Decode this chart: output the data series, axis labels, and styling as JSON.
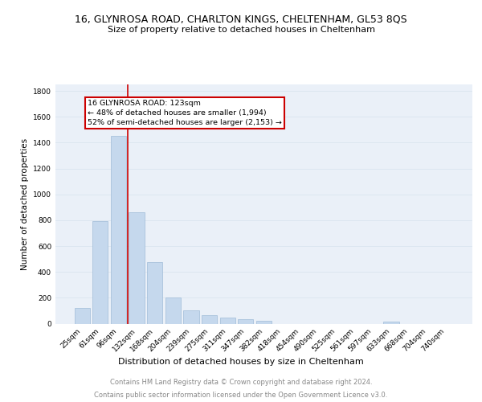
{
  "title": "16, GLYNROSA ROAD, CHARLTON KINGS, CHELTENHAM, GL53 8QS",
  "subtitle": "Size of property relative to detached houses in Cheltenham",
  "xlabel": "Distribution of detached houses by size in Cheltenham",
  "ylabel": "Number of detached properties",
  "footer_line1": "Contains HM Land Registry data © Crown copyright and database right 2024.",
  "footer_line2": "Contains public sector information licensed under the Open Government Licence v3.0.",
  "categories": [
    "25sqm",
    "61sqm",
    "96sqm",
    "132sqm",
    "168sqm",
    "204sqm",
    "239sqm",
    "275sqm",
    "311sqm",
    "347sqm",
    "382sqm",
    "418sqm",
    "454sqm",
    "490sqm",
    "525sqm",
    "561sqm",
    "597sqm",
    "633sqm",
    "668sqm",
    "704sqm",
    "740sqm"
  ],
  "values": [
    120,
    790,
    1455,
    860,
    475,
    200,
    100,
    68,
    48,
    32,
    22,
    0,
    0,
    0,
    0,
    0,
    0,
    17,
    0,
    0,
    0
  ],
  "bar_color": "#c5d8ed",
  "bar_edge_color": "#a0bcd8",
  "annotation_line1": "16 GLYNROSA ROAD: 123sqm",
  "annotation_line2": "← 48% of detached houses are smaller (1,994)",
  "annotation_line3": "52% of semi-detached houses are larger (2,153) →",
  "annotation_box_color": "#ffffff",
  "annotation_border_color": "#cc0000",
  "ylim": [
    0,
    1850
  ],
  "yticks": [
    0,
    200,
    400,
    600,
    800,
    1000,
    1200,
    1400,
    1600,
    1800
  ],
  "grid_color": "#dce6f0",
  "plot_bg_color": "#eaf0f8",
  "title_fontsize": 9,
  "subtitle_fontsize": 8,
  "ylabel_fontsize": 7.5,
  "xlabel_fontsize": 8,
  "tick_fontsize": 6.5,
  "annotation_fontsize": 6.8,
  "footer_fontsize": 6,
  "footer_color": "#888888"
}
